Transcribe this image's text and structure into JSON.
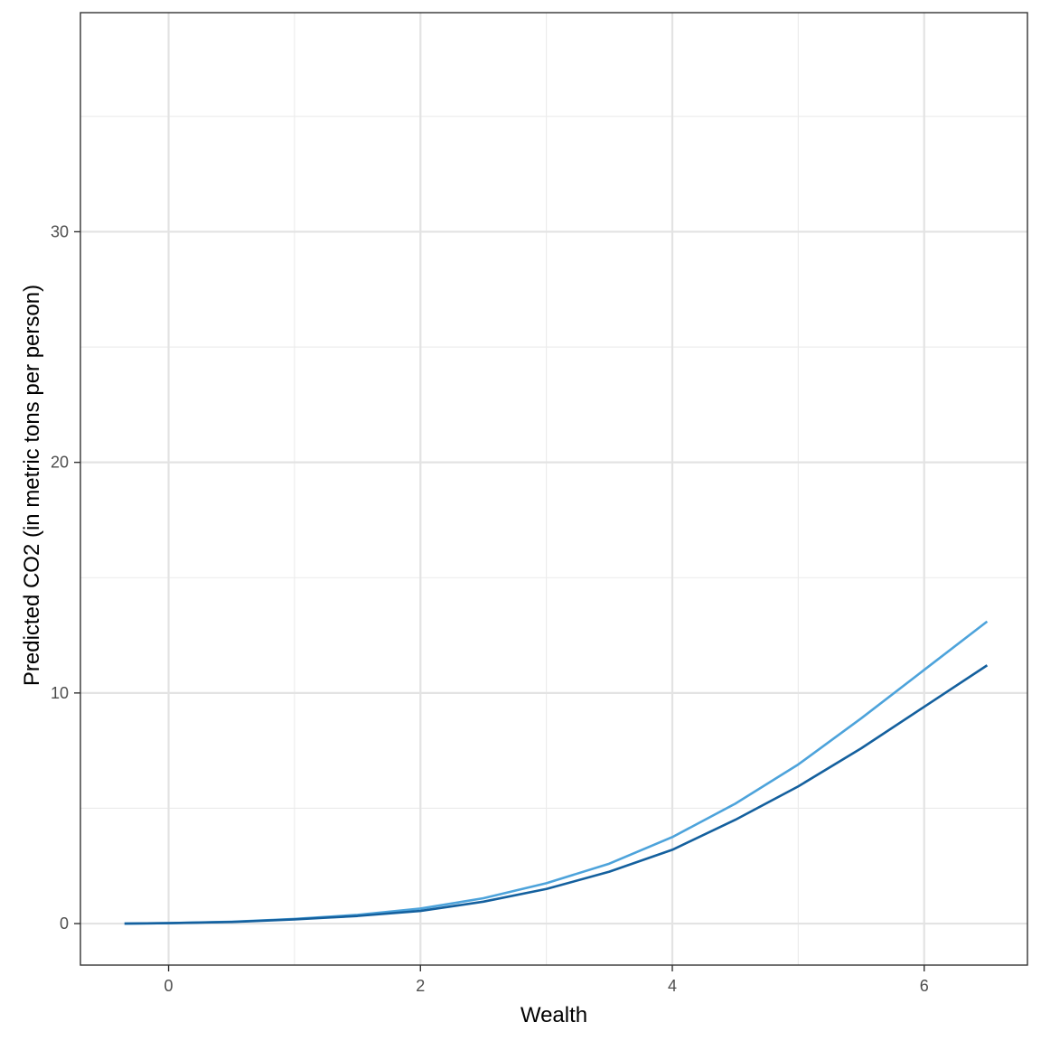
{
  "chart_data": {
    "type": "line",
    "title": "",
    "xlabel": "Wealth",
    "ylabel": "Predicted CO2 (in metric tons per person)",
    "xlim": [
      -0.7,
      6.82
    ],
    "ylim": [
      -1.8,
      39.5
    ],
    "x_ticks": [
      0,
      2,
      4,
      6
    ],
    "y_ticks": [
      0,
      10,
      20,
      30
    ],
    "grid": true,
    "legend": "none",
    "series": [
      {
        "color": "#4da3db",
        "x": [
          -0.35,
          0,
          0.5,
          1,
          1.5,
          2,
          2.5,
          3,
          3.5,
          4,
          4.5,
          5,
          5.5,
          6,
          6.5
        ],
        "y": [
          0.0,
          0.02,
          0.08,
          0.2,
          0.38,
          0.65,
          1.1,
          1.75,
          2.6,
          3.75,
          5.2,
          6.9,
          8.9,
          11.0,
          13.1
        ]
      },
      {
        "color": "#14609e",
        "x": [
          -0.35,
          0,
          0.5,
          1,
          1.5,
          2,
          2.5,
          3,
          3.5,
          4,
          4.5,
          5,
          5.5,
          6,
          6.5
        ],
        "y": [
          0.0,
          0.02,
          0.07,
          0.18,
          0.33,
          0.55,
          0.95,
          1.5,
          2.25,
          3.2,
          4.5,
          5.95,
          7.6,
          9.4,
          11.2
        ]
      }
    ]
  }
}
